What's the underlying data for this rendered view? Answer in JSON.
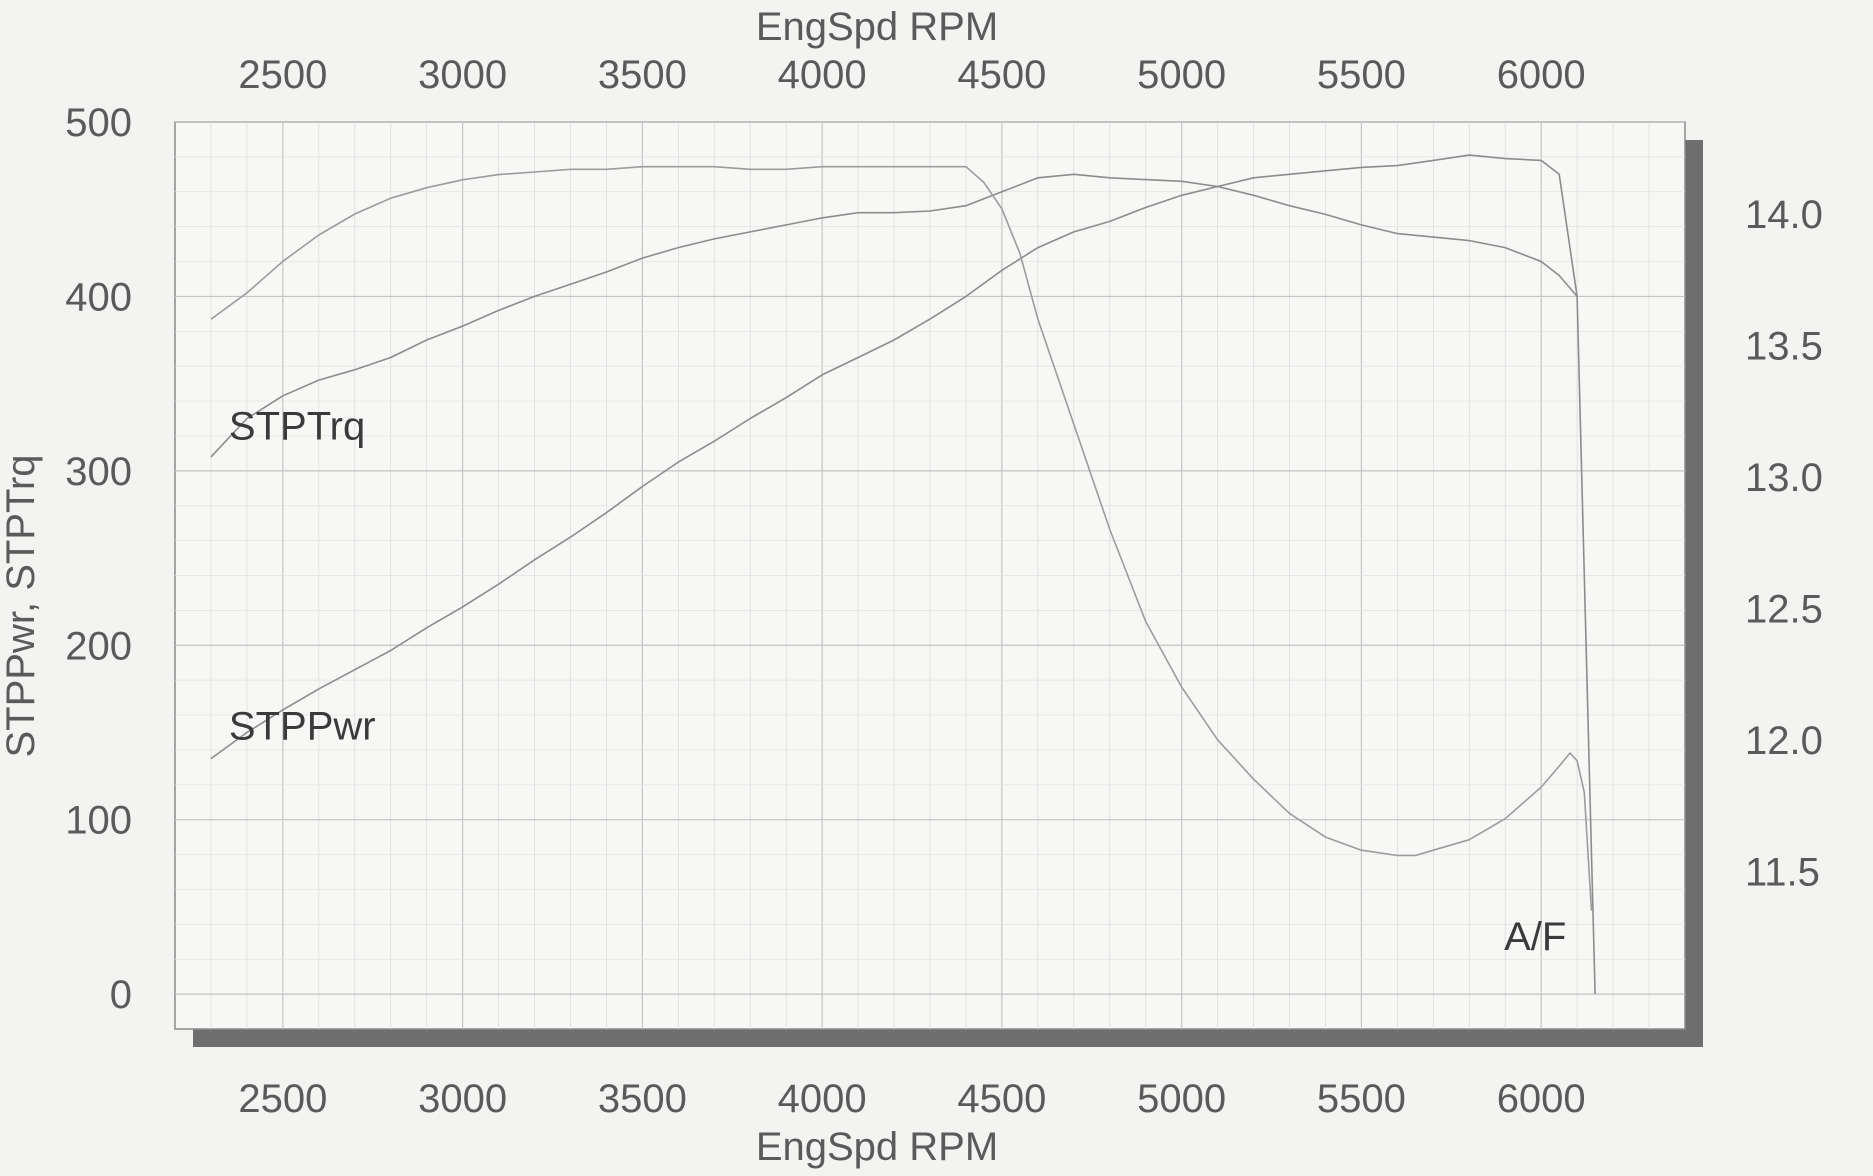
{
  "chart_data": {
    "type": "line",
    "x_axis": {
      "title": "EngSpd  RPM",
      "range": [
        2200,
        6400
      ],
      "ticks": [
        2500,
        3000,
        3500,
        4000,
        4500,
        5000,
        5500,
        6000
      ],
      "tick_labels": [
        "2500",
        "3000",
        "3500",
        "4000",
        "4500",
        "5000",
        "5500",
        "6000"
      ],
      "shown_top_and_bottom": true
    },
    "y_axis_left": {
      "title": "STPPwr, STPTrq",
      "range": [
        -20,
        500
      ],
      "ticks": [
        0,
        100,
        200,
        300,
        400,
        500
      ],
      "tick_labels": [
        "0",
        "100",
        "200",
        "300",
        "400",
        "500"
      ]
    },
    "y_axis_right": {
      "title": "",
      "range": [
        10.9,
        14.35
      ],
      "ticks": [
        11.5,
        12.0,
        12.5,
        13.0,
        13.5,
        14.0
      ],
      "tick_labels": [
        "11.5",
        "12.0",
        "12.5",
        "13.0",
        "13.5",
        "14.0"
      ]
    },
    "grid": true,
    "series": [
      {
        "name": "STPTrq",
        "axis": "left",
        "color": "#8c8c8c",
        "label_text": "STPTrq",
        "x": [
          2300,
          2400,
          2500,
          2600,
          2700,
          2800,
          2900,
          3000,
          3100,
          3200,
          3300,
          3400,
          3500,
          3600,
          3700,
          3800,
          3900,
          4000,
          4100,
          4200,
          4300,
          4400,
          4500,
          4600,
          4700,
          4800,
          4900,
          5000,
          5100,
          5200,
          5300,
          5400,
          5500,
          5600,
          5700,
          5800,
          5900,
          6000,
          6050,
          6100
        ],
        "y": [
          308,
          330,
          343,
          352,
          358,
          365,
          375,
          383,
          392,
          400,
          407,
          414,
          422,
          428,
          433,
          437,
          441,
          445,
          448,
          448,
          449,
          452,
          460,
          468,
          470,
          468,
          467,
          466,
          463,
          458,
          452,
          447,
          441,
          436,
          434,
          432,
          428,
          420,
          412,
          400
        ]
      },
      {
        "name": "STPPwr",
        "axis": "left",
        "color": "#8c8c8c",
        "label_text": "STPPwr",
        "x": [
          2300,
          2400,
          2500,
          2600,
          2700,
          2800,
          2900,
          3000,
          3100,
          3200,
          3300,
          3400,
          3500,
          3600,
          3700,
          3800,
          3900,
          4000,
          4100,
          4200,
          4300,
          4400,
          4500,
          4600,
          4700,
          4800,
          4900,
          5000,
          5100,
          5200,
          5300,
          5400,
          5500,
          5600,
          5700,
          5800,
          5900,
          6000,
          6050,
          6100,
          6150
        ],
        "y": [
          135,
          150,
          163,
          175,
          186,
          197,
          210,
          222,
          235,
          249,
          262,
          276,
          291,
          305,
          317,
          330,
          342,
          355,
          365,
          375,
          387,
          400,
          415,
          428,
          437,
          443,
          451,
          458,
          463,
          468,
          470,
          472,
          474,
          475,
          478,
          481,
          479,
          478,
          470,
          400,
          0
        ]
      },
      {
        "name": "A/F",
        "axis": "right",
        "color": "#9c9c9c",
        "label_text": "A/F",
        "x": [
          2300,
          2400,
          2500,
          2600,
          2700,
          2800,
          2900,
          3000,
          3100,
          3200,
          3300,
          3400,
          3500,
          3600,
          3700,
          3800,
          3900,
          4000,
          4100,
          4200,
          4300,
          4400,
          4450,
          4500,
          4550,
          4600,
          4700,
          4800,
          4900,
          5000,
          5100,
          5200,
          5300,
          5400,
          5500,
          5600,
          5650,
          5700,
          5800,
          5900,
          6000,
          6050,
          6080,
          6100,
          6120,
          6140
        ],
        "y": [
          13.6,
          13.7,
          13.82,
          13.92,
          14.0,
          14.06,
          14.1,
          14.13,
          14.15,
          14.16,
          14.17,
          14.17,
          14.18,
          14.18,
          14.18,
          14.17,
          14.17,
          14.18,
          14.18,
          14.18,
          14.18,
          14.18,
          14.12,
          14.02,
          13.85,
          13.6,
          13.2,
          12.8,
          12.45,
          12.2,
          12.0,
          11.85,
          11.72,
          11.63,
          11.58,
          11.56,
          11.56,
          11.58,
          11.62,
          11.7,
          11.82,
          11.9,
          11.95,
          11.92,
          11.8,
          11.35
        ]
      }
    ]
  }
}
